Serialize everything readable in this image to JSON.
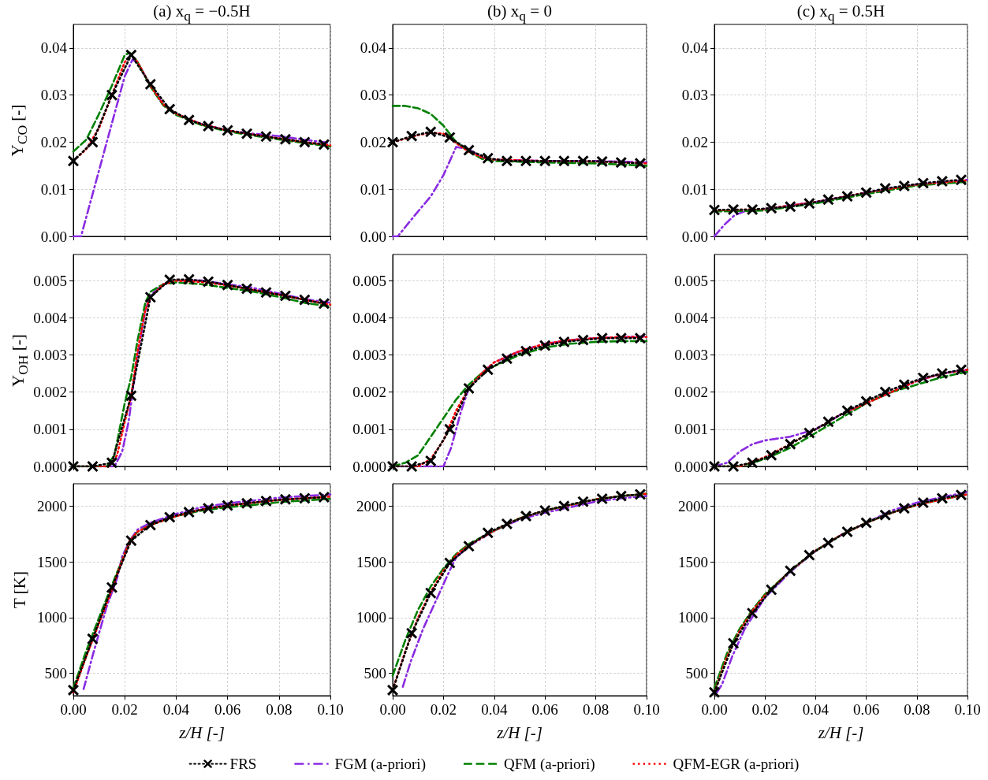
{
  "chart_data": [
    {
      "type": "line",
      "title": "(a) x$_{q}$ = −0.5H",
      "ylabel": "Y$_{CO}$ [-]",
      "xlim": [
        0,
        0.1
      ],
      "xticks": [
        0,
        0.02,
        0.04,
        0.06,
        0.08,
        0.1
      ],
      "ylim": [
        0,
        0.045
      ],
      "yticks": [
        {
          "value": 0,
          "label": "0.00"
        },
        {
          "value": 0.01,
          "label": "0.01"
        },
        {
          "value": 0.02,
          "label": "0.02"
        },
        {
          "value": 0.03,
          "label": "0.03"
        },
        {
          "value": 0.04,
          "label": "0.04"
        }
      ],
      "tick_labels": "y",
      "grid": true,
      "series": [
        {
          "color": "#000000",
          "marker": "cross",
          "line_style": "dotted",
          "x": [
            0,
            0.0075,
            0.015,
            0.0225,
            0.03,
            0.0375,
            0.045,
            0.0525,
            0.06,
            0.0675,
            0.075,
            0.0825,
            0.09,
            0.0975
          ],
          "values": [
            0.016,
            0.02,
            0.03,
            0.0385,
            0.0323,
            0.027,
            0.0247,
            0.0234,
            0.0225,
            0.0218,
            0.0212,
            0.0206,
            0.02,
            0.0195
          ]
        },
        {
          "color": "#8a2be2",
          "marker": "none",
          "line_style": "dashdot",
          "x": [
            0,
            0.003,
            0.008,
            0.013,
            0.016,
            0.02,
            0.023,
            0.025,
            0.03,
            0.035,
            0.04,
            0.05,
            0.06,
            0.07,
            0.08,
            0.09,
            0.1
          ],
          "values": [
            0,
            0,
            0.01,
            0.02,
            0.026,
            0.034,
            0.0375,
            0.037,
            0.032,
            0.028,
            0.026,
            0.0238,
            0.0225,
            0.0218,
            0.0213,
            0.0205,
            0.0198
          ]
        },
        {
          "color": "#008000",
          "marker": "none",
          "line_style": "dashed",
          "x": [
            0,
            0.005,
            0.01,
            0.015,
            0.02,
            0.022,
            0.025,
            0.03,
            0.035,
            0.04,
            0.05,
            0.06,
            0.07,
            0.08,
            0.09,
            0.1
          ],
          "values": [
            0.018,
            0.0205,
            0.026,
            0.032,
            0.0385,
            0.039,
            0.037,
            0.0318,
            0.0278,
            0.0258,
            0.0236,
            0.0223,
            0.0214,
            0.0206,
            0.0198,
            0.0191
          ]
        },
        {
          "color": "#ff0000",
          "marker": "none",
          "line_style": "dotted",
          "x": [
            0,
            0.005,
            0.01,
            0.015,
            0.02,
            0.0225,
            0.025,
            0.03,
            0.035,
            0.04,
            0.05,
            0.06,
            0.07,
            0.08,
            0.09,
            0.1
          ],
          "values": [
            0.016,
            0.0185,
            0.023,
            0.03,
            0.037,
            0.0385,
            0.037,
            0.032,
            0.028,
            0.026,
            0.0238,
            0.0225,
            0.0216,
            0.0208,
            0.02,
            0.0193
          ]
        }
      ]
    },
    {
      "type": "line",
      "title": "(b) x$_{q}$ = 0",
      "xlim": [
        0,
        0.1
      ],
      "xticks": [
        0,
        0.02,
        0.04,
        0.06,
        0.08,
        0.1
      ],
      "ylim": [
        0,
        0.045
      ],
      "yticks": [
        {
          "value": 0,
          "label": "0.00"
        },
        {
          "value": 0.01,
          "label": "0.01"
        },
        {
          "value": 0.02,
          "label": "0.02"
        },
        {
          "value": 0.03,
          "label": "0.03"
        },
        {
          "value": 0.04,
          "label": "0.04"
        }
      ],
      "tick_labels": "y",
      "grid": true,
      "series": [
        {
          "color": "#000000",
          "marker": "cross",
          "line_style": "dotted",
          "x": [
            0,
            0.0075,
            0.015,
            0.0225,
            0.03,
            0.0375,
            0.045,
            0.0525,
            0.06,
            0.0675,
            0.075,
            0.0825,
            0.09,
            0.0975
          ],
          "values": [
            0.02,
            0.0213,
            0.0222,
            0.021,
            0.0183,
            0.0166,
            0.016,
            0.016,
            0.016,
            0.016,
            0.016,
            0.0159,
            0.0157,
            0.0155
          ]
        },
        {
          "color": "#8a2be2",
          "marker": "none",
          "line_style": "dashdot",
          "x": [
            0,
            0.002,
            0.008,
            0.015,
            0.02,
            0.025,
            0.03,
            0.035,
            0.04,
            0.06,
            0.08,
            0.1
          ],
          "values": [
            0,
            0,
            0.004,
            0.0085,
            0.013,
            0.019,
            0.0185,
            0.0168,
            0.0163,
            0.016,
            0.016,
            0.0157
          ]
        },
        {
          "color": "#008000",
          "marker": "none",
          "line_style": "dashed",
          "x": [
            0,
            0.005,
            0.01,
            0.015,
            0.02,
            0.025,
            0.03,
            0.035,
            0.04,
            0.06,
            0.08,
            0.1
          ],
          "values": [
            0.0277,
            0.0277,
            0.0272,
            0.026,
            0.0235,
            0.02,
            0.018,
            0.0165,
            0.016,
            0.0157,
            0.0155,
            0.015
          ]
        },
        {
          "color": "#ff0000",
          "marker": "none",
          "line_style": "dotted",
          "x": [
            0,
            0.01,
            0.015,
            0.02,
            0.025,
            0.03,
            0.035,
            0.04,
            0.06,
            0.08,
            0.1
          ],
          "values": [
            0.02,
            0.0215,
            0.022,
            0.0218,
            0.0198,
            0.018,
            0.0168,
            0.0163,
            0.016,
            0.0159,
            0.0155
          ]
        }
      ]
    },
    {
      "type": "line",
      "title": "(c) x$_{q}$ = 0.5H",
      "xlim": [
        0,
        0.1
      ],
      "xticks": [
        0,
        0.02,
        0.04,
        0.06,
        0.08,
        0.1
      ],
      "ylim": [
        0,
        0.045
      ],
      "yticks": [
        {
          "value": 0,
          "label": "0.00"
        },
        {
          "value": 0.01,
          "label": "0.01"
        },
        {
          "value": 0.02,
          "label": "0.02"
        },
        {
          "value": 0.03,
          "label": "0.03"
        },
        {
          "value": 0.04,
          "label": "0.04"
        }
      ],
      "tick_labels": "y",
      "grid": true,
      "series": [
        {
          "color": "#000000",
          "marker": "cross",
          "line_style": "dotted",
          "x": [
            0,
            0.0075,
            0.015,
            0.0225,
            0.03,
            0.0375,
            0.045,
            0.0525,
            0.06,
            0.0675,
            0.075,
            0.0825,
            0.09,
            0.0975
          ],
          "values": [
            0.0056,
            0.0057,
            0.0057,
            0.006,
            0.0063,
            0.007,
            0.0078,
            0.0085,
            0.0093,
            0.0102,
            0.0107,
            0.0113,
            0.0117,
            0.012
          ]
        },
        {
          "color": "#8a2be2",
          "marker": "none",
          "line_style": "dashdot",
          "x": [
            0,
            0.004,
            0.008,
            0.012,
            0.02,
            0.04,
            0.06,
            0.08,
            0.1
          ],
          "values": [
            0,
            0.0025,
            0.0045,
            0.0053,
            0.0058,
            0.0073,
            0.0093,
            0.011,
            0.012
          ]
        },
        {
          "color": "#008000",
          "marker": "none",
          "line_style": "dashed",
          "x": [
            0,
            0.02,
            0.04,
            0.06,
            0.08,
            0.1
          ],
          "values": [
            0.0053,
            0.0055,
            0.007,
            0.009,
            0.0108,
            0.0116
          ]
        },
        {
          "color": "#ff0000",
          "marker": "none",
          "line_style": "dotted",
          "x": [
            0,
            0.02,
            0.04,
            0.06,
            0.08,
            0.1
          ],
          "values": [
            0.0055,
            0.0058,
            0.0073,
            0.0093,
            0.011,
            0.0119
          ]
        }
      ]
    },
    {
      "type": "line",
      "ylabel": "Y$_{OH}$ [-]",
      "xlim": [
        0,
        0.1
      ],
      "xticks": [
        0,
        0.02,
        0.04,
        0.06,
        0.08,
        0.1
      ],
      "ylim": [
        0,
        0.0057
      ],
      "yticks": [
        {
          "value": 0,
          "label": "0.000"
        },
        {
          "value": 0.001,
          "label": "0.001"
        },
        {
          "value": 0.002,
          "label": "0.002"
        },
        {
          "value": 0.003,
          "label": "0.003"
        },
        {
          "value": 0.004,
          "label": "0.004"
        },
        {
          "value": 0.005,
          "label": "0.005"
        }
      ],
      "tick_labels": "y",
      "grid": true,
      "series": [
        {
          "color": "#000000",
          "marker": "cross",
          "line_style": "dotted",
          "x": [
            0,
            0.0075,
            0.015,
            0.0225,
            0.03,
            0.0375,
            0.045,
            0.0525,
            0.06,
            0.0675,
            0.075,
            0.0825,
            0.09,
            0.0975
          ],
          "values": [
            0,
            0,
            0.0001,
            0.0019,
            0.00455,
            0.00502,
            0.00503,
            0.00497,
            0.00488,
            0.00478,
            0.00468,
            0.00459,
            0.00448,
            0.00438
          ]
        },
        {
          "color": "#8a2be2",
          "marker": "none",
          "line_style": "dashdot",
          "x": [
            0,
            0.016,
            0.019,
            0.0215,
            0.025,
            0.028,
            0.03,
            0.035,
            0.04,
            0.05,
            0.06,
            0.07,
            0.08,
            0.09,
            0.1
          ],
          "values": [
            0,
            0,
            0.0004,
            0.0012,
            0.003,
            0.0042,
            0.0046,
            0.0049,
            0.005,
            0.005,
            0.0049,
            0.0048,
            0.00465,
            0.0045,
            0.0044
          ]
        },
        {
          "color": "#008000",
          "marker": "none",
          "line_style": "dashed",
          "x": [
            0,
            0.013,
            0.016,
            0.02,
            0.0225,
            0.025,
            0.028,
            0.03,
            0.035,
            0.04,
            0.05,
            0.06,
            0.07,
            0.08,
            0.09,
            0.1
          ],
          "values": [
            0,
            0,
            0.0003,
            0.0017,
            0.0024,
            0.0034,
            0.0044,
            0.0047,
            0.0049,
            0.00495,
            0.0049,
            0.0048,
            0.0047,
            0.00456,
            0.0044,
            0.0043
          ]
        },
        {
          "color": "#ff0000",
          "marker": "none",
          "line_style": "dotted",
          "x": [
            0,
            0.014,
            0.017,
            0.02,
            0.0225,
            0.025,
            0.028,
            0.03,
            0.035,
            0.04,
            0.05,
            0.06,
            0.07,
            0.08,
            0.09,
            0.1
          ],
          "values": [
            0,
            0,
            0.0003,
            0.0012,
            0.0019,
            0.0031,
            0.0042,
            0.00455,
            0.0049,
            0.005,
            0.00496,
            0.00487,
            0.00475,
            0.00462,
            0.00448,
            0.00435
          ]
        }
      ]
    },
    {
      "type": "line",
      "xlim": [
        0,
        0.1
      ],
      "xticks": [
        0,
        0.02,
        0.04,
        0.06,
        0.08,
        0.1
      ],
      "ylim": [
        0,
        0.0057
      ],
      "yticks": [
        {
          "value": 0,
          "label": "0.000"
        },
        {
          "value": 0.001,
          "label": "0.001"
        },
        {
          "value": 0.002,
          "label": "0.002"
        },
        {
          "value": 0.003,
          "label": "0.003"
        },
        {
          "value": 0.004,
          "label": "0.004"
        },
        {
          "value": 0.005,
          "label": "0.005"
        }
      ],
      "tick_labels": "y",
      "grid": true,
      "series": [
        {
          "color": "#000000",
          "marker": "cross",
          "line_style": "dotted",
          "x": [
            0,
            0.0075,
            0.015,
            0.0225,
            0.03,
            0.0375,
            0.045,
            0.0525,
            0.06,
            0.0675,
            0.075,
            0.0825,
            0.09,
            0.0975
          ],
          "values": [
            0,
            0,
            0.00015,
            0.001,
            0.0021,
            0.0026,
            0.0029,
            0.0031,
            0.00325,
            0.00335,
            0.0034,
            0.00345,
            0.00345,
            0.00345
          ]
        },
        {
          "color": "#8a2be2",
          "marker": "none",
          "line_style": "dashdot",
          "x": [
            0,
            0.02,
            0.023,
            0.027,
            0.03,
            0.035,
            0.04,
            0.05,
            0.06,
            0.07,
            0.08,
            0.09,
            0.1
          ],
          "values": [
            0,
            0,
            0.0005,
            0.0015,
            0.0021,
            0.0025,
            0.0028,
            0.0031,
            0.0033,
            0.0034,
            0.00345,
            0.00348,
            0.0035
          ]
        },
        {
          "color": "#008000",
          "marker": "none",
          "line_style": "dashed",
          "x": [
            0,
            0.005,
            0.01,
            0.015,
            0.02,
            0.025,
            0.03,
            0.035,
            0.04,
            0.05,
            0.06,
            0.07,
            0.08,
            0.09,
            0.1
          ],
          "values": [
            0,
            0.0001,
            0.0003,
            0.0008,
            0.0013,
            0.0018,
            0.0022,
            0.0025,
            0.0027,
            0.003,
            0.0032,
            0.0033,
            0.00335,
            0.00337,
            0.00337
          ]
        },
        {
          "color": "#ff0000",
          "marker": "none",
          "line_style": "dotted",
          "x": [
            0,
            0.01,
            0.015,
            0.02,
            0.025,
            0.03,
            0.035,
            0.04,
            0.05,
            0.06,
            0.07,
            0.08,
            0.09,
            0.1
          ],
          "values": [
            0,
            0,
            0.0002,
            0.0007,
            0.0015,
            0.0021,
            0.0025,
            0.0028,
            0.0031,
            0.0033,
            0.0034,
            0.00345,
            0.00348,
            0.00348
          ]
        }
      ]
    },
    {
      "type": "line",
      "xlim": [
        0,
        0.1
      ],
      "xticks": [
        0,
        0.02,
        0.04,
        0.06,
        0.08,
        0.1
      ],
      "ylim": [
        0,
        0.0057
      ],
      "yticks": [
        {
          "value": 0,
          "label": "0.000"
        },
        {
          "value": 0.001,
          "label": "0.001"
        },
        {
          "value": 0.002,
          "label": "0.002"
        },
        {
          "value": 0.003,
          "label": "0.003"
        },
        {
          "value": 0.004,
          "label": "0.004"
        },
        {
          "value": 0.005,
          "label": "0.005"
        }
      ],
      "tick_labels": "y",
      "grid": true,
      "series": [
        {
          "color": "#000000",
          "marker": "cross",
          "line_style": "dotted",
          "x": [
            0,
            0.0075,
            0.015,
            0.0225,
            0.03,
            0.0375,
            0.045,
            0.0525,
            0.06,
            0.0675,
            0.075,
            0.0825,
            0.09,
            0.0975
          ],
          "values": [
            0,
            0,
            0.0001,
            0.0003,
            0.0006,
            0.0009,
            0.0012,
            0.0015,
            0.00175,
            0.002,
            0.0022,
            0.00238,
            0.0025,
            0.0026
          ]
        },
        {
          "color": "#8a2be2",
          "marker": "none",
          "line_style": "dashdot",
          "x": [
            0,
            0.005,
            0.01,
            0.015,
            0.02,
            0.025,
            0.03,
            0.035,
            0.04,
            0.05,
            0.06,
            0.07,
            0.08,
            0.09,
            0.1
          ],
          "values": [
            0,
            0.0001,
            0.0004,
            0.0006,
            0.0007,
            0.00075,
            0.0008,
            0.0009,
            0.001,
            0.0014,
            0.0017,
            0.002,
            0.0023,
            0.0025,
            0.0026
          ]
        },
        {
          "color": "#008000",
          "marker": "none",
          "line_style": "dashed",
          "x": [
            0,
            0.01,
            0.02,
            0.03,
            0.04,
            0.05,
            0.06,
            0.07,
            0.08,
            0.09,
            0.1
          ],
          "values": [
            0,
            0,
            0.0002,
            0.0005,
            0.0009,
            0.0013,
            0.0017,
            0.002,
            0.0022,
            0.0024,
            0.00255
          ]
        },
        {
          "color": "#ff0000",
          "marker": "none",
          "line_style": "dotted",
          "x": [
            0,
            0.01,
            0.02,
            0.03,
            0.04,
            0.05,
            0.06,
            0.07,
            0.08,
            0.09,
            0.1
          ],
          "values": [
            0,
            0,
            0.00025,
            0.0006,
            0.001,
            0.0014,
            0.0017,
            0.002,
            0.0023,
            0.0025,
            0.0026
          ]
        }
      ]
    },
    {
      "type": "line",
      "ylabel": "T [K]",
      "xlabel": "z/H [-]",
      "xlim": [
        0,
        0.1
      ],
      "xticks": [
        {
          "value": 0,
          "label": "0.00"
        },
        {
          "value": 0.02,
          "label": "0.02"
        },
        {
          "value": 0.04,
          "label": "0.04"
        },
        {
          "value": 0.06,
          "label": "0.06"
        },
        {
          "value": 0.08,
          "label": "0.08"
        },
        {
          "value": 0.1,
          "label": "0.10"
        }
      ],
      "ylim": [
        300,
        2200
      ],
      "yticks": [
        500,
        1000,
        1500,
        2000
      ],
      "grid": true,
      "series": [
        {
          "color": "#000000",
          "marker": "cross",
          "line_style": "dotted",
          "x": [
            0,
            0.0075,
            0.015,
            0.0225,
            0.03,
            0.0375,
            0.045,
            0.0525,
            0.06,
            0.0675,
            0.075,
            0.0825,
            0.09,
            0.0975
          ],
          "values": [
            350,
            810,
            1270,
            1690,
            1830,
            1900,
            1945,
            1980,
            2005,
            2025,
            2045,
            2060,
            2070,
            2080
          ]
        },
        {
          "color": "#8a2be2",
          "marker": "none",
          "line_style": "dashdot",
          "x": [
            0.004,
            0.008,
            0.013,
            0.017,
            0.019,
            0.022,
            0.025,
            0.03,
            0.04,
            0.05,
            0.06,
            0.07,
            0.08,
            0.09,
            0.1
          ],
          "values": [
            360,
            700,
            1100,
            1350,
            1550,
            1690,
            1790,
            1850,
            1930,
            1990,
            2025,
            2050,
            2075,
            2090,
            2105
          ]
        },
        {
          "color": "#008000",
          "marker": "none",
          "line_style": "dashed",
          "x": [
            0,
            0.005,
            0.01,
            0.015,
            0.018,
            0.022,
            0.025,
            0.03,
            0.04,
            0.05,
            0.06,
            0.07,
            0.08,
            0.09,
            0.1
          ],
          "values": [
            370,
            700,
            1000,
            1290,
            1460,
            1690,
            1770,
            1830,
            1910,
            1960,
            1990,
            2010,
            2035,
            2050,
            2065
          ]
        },
        {
          "color": "#ff0000",
          "marker": "none",
          "line_style": "dotted",
          "x": [
            0,
            0.005,
            0.01,
            0.015,
            0.018,
            0.022,
            0.025,
            0.03,
            0.04,
            0.05,
            0.06,
            0.07,
            0.08,
            0.09,
            0.1
          ],
          "values": [
            330,
            650,
            950,
            1250,
            1450,
            1690,
            1770,
            1830,
            1910,
            1970,
            2005,
            2030,
            2055,
            2070,
            2085
          ]
        }
      ]
    },
    {
      "type": "line",
      "xlabel": "z/H [-]",
      "legend": "bottom",
      "xlim": [
        0,
        0.1
      ],
      "xticks": [
        {
          "value": 0,
          "label": "0.00"
        },
        {
          "value": 0.02,
          "label": "0.02"
        },
        {
          "value": 0.04,
          "label": "0.04"
        },
        {
          "value": 0.06,
          "label": "0.06"
        },
        {
          "value": 0.08,
          "label": "0.08"
        },
        {
          "value": 0.1,
          "label": "0.10"
        }
      ],
      "ylim": [
        300,
        2200
      ],
      "yticks": [
        500,
        1000,
        1500,
        2000
      ],
      "grid": true,
      "series": [
        {
          "name": "FRS",
          "color": "#000000",
          "marker": "cross",
          "line_style": "dotted",
          "x": [
            0,
            0.0075,
            0.015,
            0.0225,
            0.03,
            0.0375,
            0.045,
            0.0525,
            0.06,
            0.0675,
            0.075,
            0.0825,
            0.09,
            0.0975
          ],
          "values": [
            350,
            860,
            1220,
            1490,
            1640,
            1760,
            1840,
            1910,
            1960,
            2000,
            2040,
            2065,
            2090,
            2105
          ]
        },
        {
          "name": "FGM (a-priori)",
          "color": "#8a2be2",
          "marker": "none",
          "line_style": "dashdot",
          "x": [
            0.004,
            0.007,
            0.012,
            0.017,
            0.022,
            0.025,
            0.03,
            0.04,
            0.05,
            0.06,
            0.07,
            0.08,
            0.09,
            0.1
          ],
          "values": [
            380,
            600,
            900,
            1150,
            1400,
            1540,
            1640,
            1780,
            1880,
            1940,
            1990,
            2040,
            2070,
            2090
          ]
        },
        {
          "name": "QFM (a-priori)",
          "color": "#008000",
          "marker": "none",
          "line_style": "dashed",
          "x": [
            0,
            0.005,
            0.01,
            0.015,
            0.02,
            0.025,
            0.03,
            0.04,
            0.05,
            0.06,
            0.07,
            0.08,
            0.09,
            0.1
          ],
          "values": [
            480,
            800,
            1070,
            1280,
            1440,
            1570,
            1660,
            1780,
            1890,
            1960,
            2010,
            2060,
            2090,
            2110
          ]
        },
        {
          "name": "QFM-EGR (a-priori)",
          "color": "#ff0000",
          "marker": "none",
          "line_style": "dotted",
          "x": [
            0,
            0.005,
            0.01,
            0.015,
            0.02,
            0.025,
            0.03,
            0.04,
            0.05,
            0.06,
            0.07,
            0.08,
            0.09,
            0.1
          ],
          "values": [
            350,
            700,
            1000,
            1230,
            1420,
            1560,
            1650,
            1780,
            1890,
            1960,
            2010,
            2060,
            2090,
            2110
          ]
        }
      ]
    },
    {
      "type": "line",
      "xlabel": "z/H [-]",
      "xlim": [
        0,
        0.1
      ],
      "xticks": [
        {
          "value": 0,
          "label": "0.00"
        },
        {
          "value": 0.02,
          "label": "0.02"
        },
        {
          "value": 0.04,
          "label": "0.04"
        },
        {
          "value": 0.06,
          "label": "0.06"
        },
        {
          "value": 0.08,
          "label": "0.08"
        },
        {
          "value": 0.1,
          "label": "0.10"
        }
      ],
      "ylim": [
        300,
        2200
      ],
      "yticks": [
        500,
        1000,
        1500,
        2000
      ],
      "grid": true,
      "series": [
        {
          "color": "#000000",
          "marker": "cross",
          "line_style": "dotted",
          "x": [
            0,
            0.0075,
            0.015,
            0.0225,
            0.03,
            0.0375,
            0.045,
            0.0525,
            0.06,
            0.0675,
            0.075,
            0.0825,
            0.09,
            0.0975
          ],
          "values": [
            330,
            770,
            1040,
            1250,
            1420,
            1560,
            1670,
            1770,
            1850,
            1920,
            1980,
            2030,
            2070,
            2100
          ]
        },
        {
          "color": "#8a2be2",
          "marker": "none",
          "line_style": "dashdot",
          "x": [
            0.001,
            0.003,
            0.007,
            0.012,
            0.02,
            0.03,
            0.04,
            0.05,
            0.06,
            0.07,
            0.08,
            0.09,
            0.1
          ],
          "values": [
            330,
            400,
            650,
            900,
            1180,
            1410,
            1600,
            1740,
            1850,
            1960,
            2030,
            2080,
            2125
          ]
        },
        {
          "color": "#008000",
          "marker": "none",
          "line_style": "dashed",
          "x": [
            0,
            0.005,
            0.01,
            0.015,
            0.02,
            0.03,
            0.04,
            0.05,
            0.06,
            0.07,
            0.08,
            0.09,
            0.1
          ],
          "values": [
            370,
            680,
            900,
            1070,
            1210,
            1420,
            1600,
            1740,
            1850,
            1940,
            2010,
            2060,
            2105
          ]
        },
        {
          "color": "#ff0000",
          "marker": "none",
          "line_style": "dotted",
          "x": [
            0,
            0.005,
            0.01,
            0.015,
            0.02,
            0.03,
            0.04,
            0.05,
            0.06,
            0.07,
            0.08,
            0.09,
            0.1
          ],
          "values": [
            330,
            650,
            880,
            1060,
            1200,
            1420,
            1600,
            1740,
            1850,
            1940,
            2010,
            2060,
            2105
          ]
        }
      ]
    }
  ]
}
